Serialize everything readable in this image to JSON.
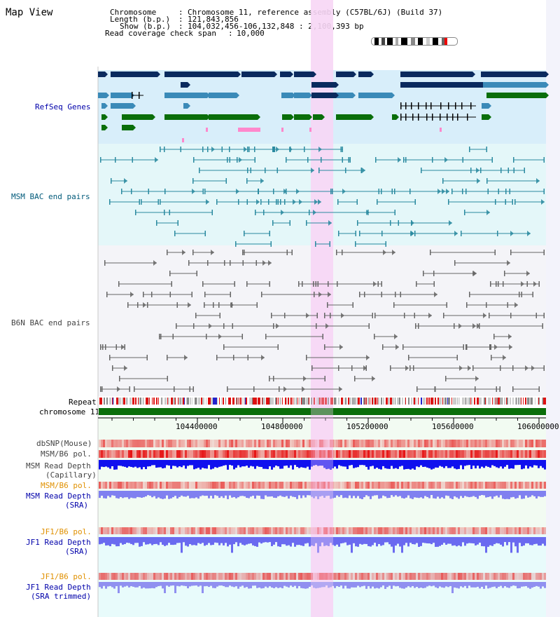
{
  "app": {
    "title": "Map View"
  },
  "info": {
    "chromosome_label": "Chromosome",
    "chromosome_value": "Chromosome 11, reference assembly (C57BL/6J) (Build 37)",
    "length_label": "Length (b.p.)",
    "length_value": "121,843,856",
    "show_label": "Show (b.p.)",
    "show_value": "104,032,456-106,132,848 : 2,100,393 bp",
    "coverage_label": "Read coverage check span",
    "coverage_value": "10,000"
  },
  "tracks": {
    "refseq": {
      "label": "RefSeq Genes",
      "color": "#0000aa"
    },
    "msm_bac": {
      "label": "MSM BAC end pairs",
      "color": "#005a7a"
    },
    "b6n_bac": {
      "label": "B6N BAC end pairs",
      "color": "#444444"
    },
    "repeat": {
      "label": "Repeat"
    },
    "chromosome": {
      "label": "chromosome 11"
    },
    "dbsnp": {
      "label": "dbSNP(Mouse)"
    },
    "msm_b6_pol_1": {
      "label": "MSM/B6 pol."
    },
    "msm_read_depth_cap": {
      "label_line1": "MSM Read Depth",
      "label_line2": "(Capillary)"
    },
    "msm_b6_pol_2": {
      "label": "MSM/B6 pol."
    },
    "msm_read_depth_sra": {
      "label_line1": "MSM Read Depth",
      "label_line2": "(SRA)"
    },
    "jf1_b6_pol_1": {
      "label": "JF1/B6 pol."
    },
    "jf1_read_depth_sra": {
      "label_line1": "JF1 Read Depth",
      "label_line2": "(SRA)"
    },
    "jf1_b6_pol_2": {
      "label": "JF1/B6 pol."
    },
    "jf1_read_depth_trim": {
      "label_line1": "JF1 Read Depth",
      "label_line2": "(SRA trimmed)"
    }
  },
  "axis": {
    "ticks": [
      "104400000",
      "104800000",
      "105200000",
      "105600000",
      "106000000"
    ]
  },
  "colors": {
    "highlight": "#f7d6f5",
    "refseq_bg": "#d8eefa",
    "msm_bg": "#e4f7f9",
    "b6n_bg": "#f0f0f6",
    "dark_gene": "#0a2a5e",
    "mid_gene": "#3a8ab8",
    "green_gene": "#0a6e0a",
    "chrom_bar": "#0a6e0a",
    "pol_red": "#ee2222",
    "depth_blue": "#1010ee",
    "depth_lilac": "#8080f0",
    "orange_label": "#e09000",
    "navy_label": "#0000aa"
  }
}
